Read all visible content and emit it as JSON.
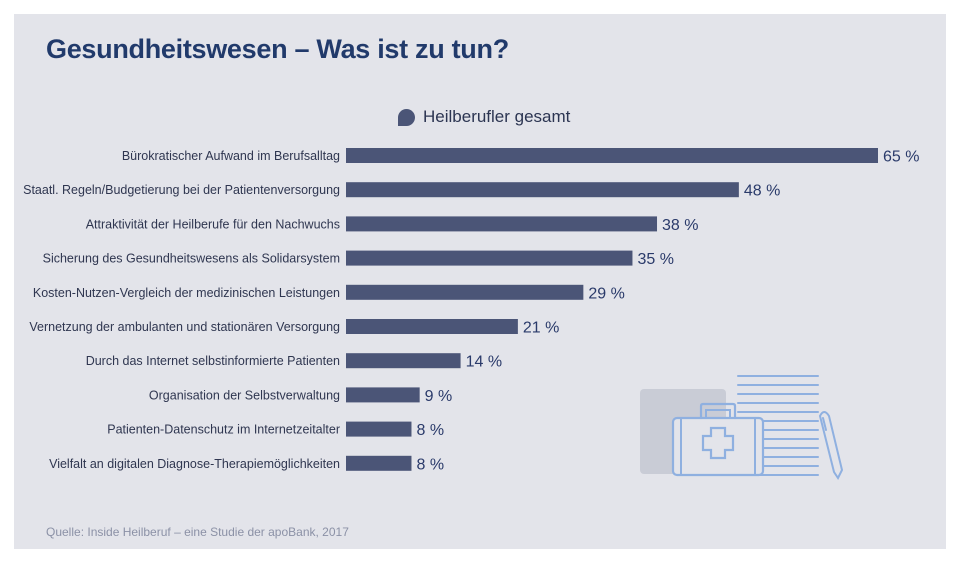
{
  "header": {
    "title": "Gesundheitswesen – Was ist zu tun?"
  },
  "legend": {
    "label": "Heilberufler gesamt"
  },
  "footer": {
    "source": "Quelle: Inside Heilberuf – eine Studie der apoBank, 2017"
  },
  "illustration": {
    "icon": "medical-kit-document-pen-icon"
  },
  "colors": {
    "panel": "#e3e4ea",
    "bar": "#4b5577",
    "title": "#213a6b",
    "illustration_line": "#8fb0e0",
    "illustration_fill": "#c9ccd6"
  },
  "chart_data": {
    "type": "bar",
    "orientation": "horizontal",
    "title": "Gesundheitswesen – Was ist zu tun?",
    "series_name": "Heilberufler gesamt",
    "unit": "%",
    "xlim": [
      0,
      65
    ],
    "categories": [
      "Bürokratischer Aufwand im Berufsalltag",
      "Staatl. Regeln/Budgetierung bei der Patientenversorgung",
      "Attraktivität der Heilberufe für den Nachwuchs",
      "Sicherung des Gesundheitswesens als Solidarsystem",
      "Kosten-Nutzen-Vergleich der medizinischen Leistungen",
      "Vernetzung der ambulanten und stationären Versorgung",
      "Durch das Internet selbstinformierte Patienten",
      "Organisation der Selbstverwaltung",
      "Patienten-Datenschutz im Internetzeitalter",
      "Vielfalt an digitalen Diagnose-Therapiemöglichkeiten"
    ],
    "values": [
      65,
      48,
      38,
      35,
      29,
      21,
      14,
      9,
      8,
      8
    ],
    "value_labels": [
      "65 %",
      "48 %",
      "38 %",
      "35 %",
      "29 %",
      "21 %",
      "14 %",
      "9 %",
      "8 %",
      "8 %"
    ]
  }
}
